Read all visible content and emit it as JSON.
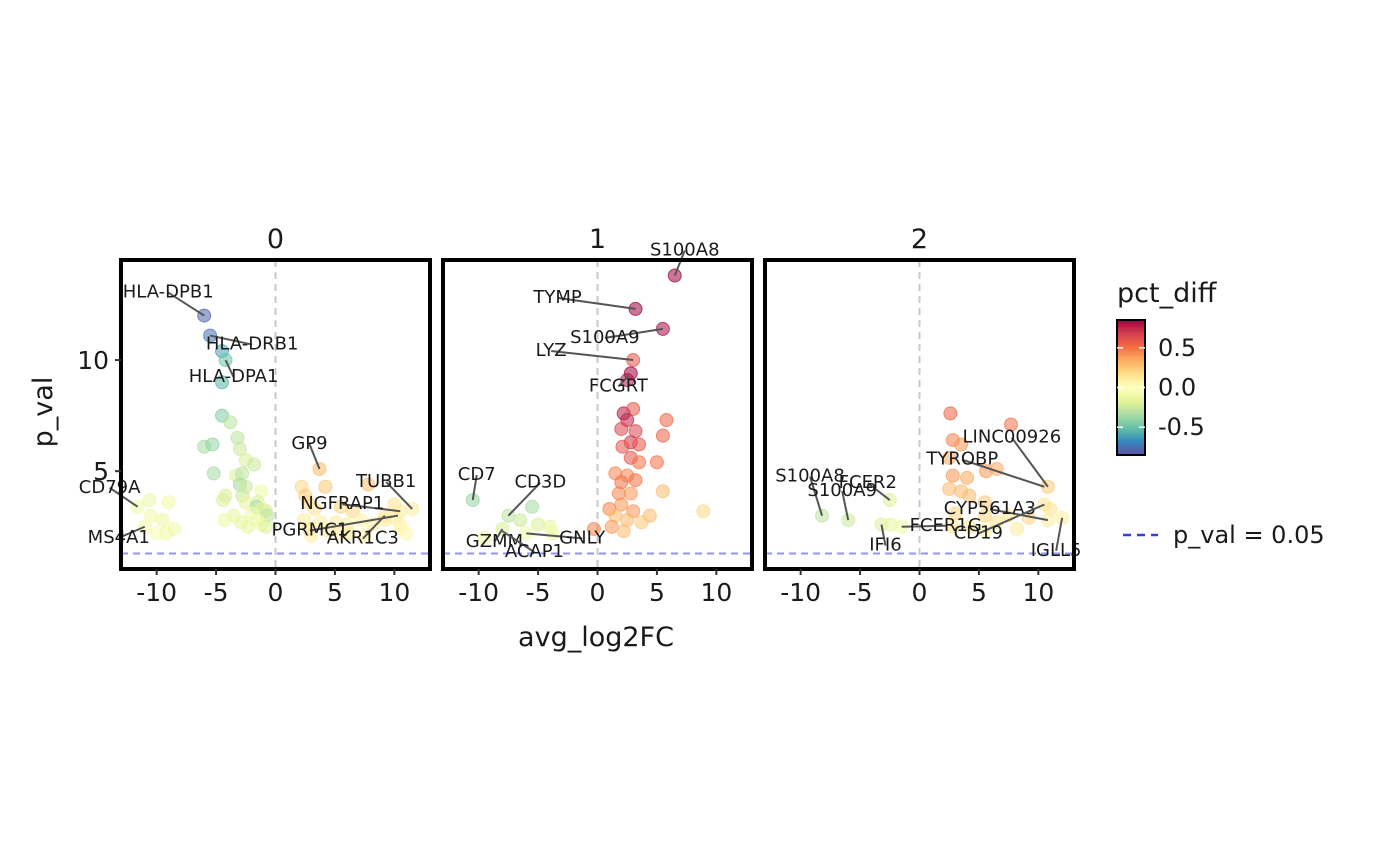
{
  "chart_data": {
    "type": "scatter",
    "ylabel": "p_val",
    "xlabel": "avg_log2FC",
    "xlim": [
      -13,
      13
    ],
    "ylim": [
      0.6,
      14.5
    ],
    "x_ticks": [
      -10,
      -5,
      0,
      5,
      10
    ],
    "x_tick_labels": [
      "-10",
      "-5",
      "0",
      "5",
      "10"
    ],
    "y_ticks": [
      5,
      10
    ],
    "y_tick_labels": [
      "5",
      "10"
    ],
    "threshold_line": {
      "y": 1.3,
      "label": "p_val = 0.05",
      "color": "#6f6ff0"
    },
    "zero_line": {
      "x": 0
    },
    "legend": {
      "title": "pct_diff",
      "position": "right",
      "ticks": [
        {
          "value": 0.5,
          "label": "0.5"
        },
        {
          "value": 0.0,
          "label": "0.0"
        },
        {
          "value": -0.5,
          "label": "-0.5"
        }
      ],
      "range": [
        -0.85,
        0.85
      ],
      "palette": [
        "#5e4fa2",
        "#3288bd",
        "#66c2a5",
        "#abdda4",
        "#e6f598",
        "#ffffbf",
        "#fee08b",
        "#fdae61",
        "#f46d43",
        "#d53e4f",
        "#9e0142"
      ]
    },
    "panels": [
      {
        "title": "0",
        "points": [
          [
            -6,
            12,
            -0.8
          ],
          [
            -5.5,
            11.1,
            -0.75
          ],
          [
            -4.5,
            10.4,
            -0.6
          ],
          [
            -4.2,
            10,
            -0.5
          ],
          [
            -4.5,
            9,
            -0.55
          ],
          [
            -4.5,
            7.5,
            -0.45
          ],
          [
            -3.8,
            7.2,
            -0.3
          ],
          [
            -6,
            6.1,
            -0.35
          ],
          [
            -5.3,
            6.2,
            -0.4
          ],
          [
            -3.2,
            6.5,
            -0.3
          ],
          [
            -3,
            6,
            -0.25
          ],
          [
            -2.5,
            5.5,
            -0.2
          ],
          [
            -1.8,
            5.3,
            -0.25
          ],
          [
            -5.2,
            4.9,
            -0.35
          ],
          [
            -3.3,
            4.8,
            -0.2
          ],
          [
            -2.8,
            4.9,
            -0.3
          ],
          [
            -3,
            4.4,
            -0.35
          ],
          [
            -2.5,
            4.3,
            -0.25
          ],
          [
            -1.2,
            4.1,
            -0.1
          ],
          [
            -4.2,
            3.9,
            -0.2
          ],
          [
            -2.8,
            3.9,
            -0.25
          ],
          [
            -1.5,
            3.6,
            -0.2
          ],
          [
            -4.4,
            3.7,
            -0.2
          ],
          [
            -2.5,
            3.6,
            -0.15
          ],
          [
            -1.6,
            3.4,
            -0.35
          ],
          [
            -1.1,
            3.3,
            -0.15
          ],
          [
            -0.8,
            3.2,
            -0.2
          ],
          [
            -2,
            3.1,
            -0.1
          ],
          [
            -0.7,
            3,
            -0.3
          ],
          [
            -3.5,
            3,
            -0.15
          ],
          [
            -1.6,
            2.8,
            -0.1
          ],
          [
            -2.9,
            2.7,
            -0.15
          ],
          [
            -1.2,
            2.6,
            -0.1
          ],
          [
            -0.8,
            2.5,
            -0.2
          ],
          [
            -4.3,
            2.8,
            -0.1
          ],
          [
            -2.3,
            2.5,
            -0.15
          ],
          [
            -9,
            3.6,
            -0.1
          ],
          [
            -10.6,
            3.7,
            -0.12
          ],
          [
            -11.6,
            3.4,
            -0.1
          ],
          [
            -10.5,
            3,
            -0.1
          ],
          [
            -9.5,
            2.8,
            -0.12
          ],
          [
            -11,
            2.5,
            -0.08
          ],
          [
            -10,
            2.2,
            -0.05
          ],
          [
            -8.5,
            2.4,
            -0.1
          ],
          [
            -9.2,
            2.2,
            -0.1
          ],
          [
            3.7,
            5.1,
            0.3
          ],
          [
            7.8,
            4.4,
            0.28
          ],
          [
            2.2,
            4.3,
            0.2
          ],
          [
            2.5,
            3.9,
            0.25
          ],
          [
            4.2,
            4.3,
            0.25
          ],
          [
            2.7,
            3.6,
            0.2
          ],
          [
            3.3,
            3.3,
            0.15
          ],
          [
            5.5,
            3.4,
            0.2
          ],
          [
            6.5,
            3.2,
            0.2
          ],
          [
            10,
            3.5,
            0.15
          ],
          [
            11.5,
            3.3,
            0.1
          ],
          [
            10.5,
            3.2,
            0.1
          ],
          [
            9.2,
            3,
            0.15
          ],
          [
            10,
            2.9,
            0.1
          ],
          [
            2.4,
            2.8,
            0.1
          ],
          [
            3.8,
            2.7,
            0.1
          ],
          [
            5.1,
            2.7,
            0.1
          ],
          [
            6,
            2.6,
            0.1
          ],
          [
            7.2,
            2.8,
            0.08
          ],
          [
            8.2,
            2.6,
            0.1
          ],
          [
            9.2,
            2.8,
            0.1
          ],
          [
            10.5,
            2.6,
            0.08
          ],
          [
            4.5,
            2.3,
            0.1
          ],
          [
            6.2,
            2.2,
            0.1
          ],
          [
            7.5,
            2.1,
            0.08
          ],
          [
            10.5,
            2.4,
            0.05
          ],
          [
            11,
            2.2,
            0.05
          ],
          [
            3,
            2.1,
            0.1
          ],
          [
            2.8,
            2.4,
            0.15
          ],
          [
            5.5,
            2.2,
            0.1
          ]
        ],
        "labels": [
          {
            "text": "HLA-DPB1",
            "x": -6,
            "y": 12
          },
          {
            "text": "HLA-DRB1",
            "x": -5.5,
            "y": 11.1
          },
          {
            "text": "HLA-DPA1",
            "x": -4.2,
            "y": 10
          },
          {
            "text": "CD79A",
            "x": -11.6,
            "y": 3.4
          },
          {
            "text": "MS4A1",
            "x": -11,
            "y": 2.5
          },
          {
            "text": "GP9",
            "x": 3.7,
            "y": 5.1
          },
          {
            "text": "TUBB1",
            "x": 11.5,
            "y": 3.3
          },
          {
            "text": "NGFRAP1",
            "x": 10.5,
            "y": 3.2
          },
          {
            "text": "PGRMC1",
            "x": 10.3,
            "y": 3
          },
          {
            "text": "AKR1C3",
            "x": 9.2,
            "y": 3
          }
        ]
      },
      {
        "title": "1",
        "points": [
          [
            6.5,
            13.8,
            0.9
          ],
          [
            3.2,
            12.3,
            0.9
          ],
          [
            5.5,
            11.4,
            0.82
          ],
          [
            3,
            10,
            0.6
          ],
          [
            2.8,
            9.4,
            0.85
          ],
          [
            2.5,
            9.1,
            0.8
          ],
          [
            2.2,
            7.6,
            0.78
          ],
          [
            3,
            7.8,
            0.6
          ],
          [
            2.5,
            7.3,
            0.75
          ],
          [
            5.8,
            7.3,
            0.55
          ],
          [
            2,
            6.9,
            0.65
          ],
          [
            3.2,
            6.8,
            0.65
          ],
          [
            5.5,
            6.6,
            0.55
          ],
          [
            2.8,
            6.3,
            0.7
          ],
          [
            2.1,
            6.1,
            0.6
          ],
          [
            3.5,
            6.2,
            0.6
          ],
          [
            2.8,
            5.6,
            0.6
          ],
          [
            3.5,
            5.4,
            0.5
          ],
          [
            5,
            5.4,
            0.5
          ],
          [
            1.5,
            4.9,
            0.45
          ],
          [
            2.5,
            4.8,
            0.45
          ],
          [
            3.2,
            4.6,
            0.5
          ],
          [
            2,
            4.5,
            0.5
          ],
          [
            1.8,
            4,
            0.45
          ],
          [
            2.8,
            4,
            0.4
          ],
          [
            5.5,
            4.1,
            0.3
          ],
          [
            2,
            3.5,
            0.4
          ],
          [
            1,
            3.3,
            0.45
          ],
          [
            3,
            3.2,
            0.4
          ],
          [
            4.4,
            3,
            0.3
          ],
          [
            1.5,
            3,
            0.3
          ],
          [
            2.5,
            2.8,
            0.3
          ],
          [
            8.9,
            3.2,
            0.2
          ],
          [
            3.7,
            2.7,
            0.25
          ],
          [
            1.2,
            2.5,
            0.4
          ],
          [
            -0.3,
            2.4,
            0.45
          ],
          [
            2.2,
            2.3,
            0.3
          ],
          [
            -10.5,
            3.7,
            -0.4
          ],
          [
            -5.5,
            3.4,
            -0.35
          ],
          [
            -7.5,
            3,
            -0.3
          ],
          [
            -6.5,
            2.8,
            -0.25
          ],
          [
            -5,
            2.6,
            -0.2
          ],
          [
            -4,
            2.5,
            -0.15
          ],
          [
            -8,
            2.4,
            -0.2
          ],
          [
            -6,
            2.2,
            -0.1
          ],
          [
            -3.8,
            2.2,
            -0.1
          ],
          [
            -9.5,
            2,
            -0.1
          ]
        ],
        "labels": [
          {
            "text": "S100A8",
            "x": 6.5,
            "y": 13.8
          },
          {
            "text": "TYMP",
            "x": 3.2,
            "y": 12.3
          },
          {
            "text": "S100A9",
            "x": 5.5,
            "y": 11.4
          },
          {
            "text": "LYZ",
            "x": 3,
            "y": 10
          },
          {
            "text": "FCGRT",
            "x": 2.6,
            "y": 9.3
          },
          {
            "text": "CD7",
            "x": -10.5,
            "y": 3.7
          },
          {
            "text": "CD3D",
            "x": -7.5,
            "y": 3
          },
          {
            "text": "GZMM",
            "x": -8,
            "y": 2.4
          },
          {
            "text": "ACAP1",
            "x": -8,
            "y": 2.3
          },
          {
            "text": "GNLY",
            "x": -6,
            "y": 2.2
          }
        ]
      },
      {
        "title": "2",
        "points": [
          [
            2.6,
            7.6,
            0.55
          ],
          [
            7.7,
            7.1,
            0.5
          ],
          [
            2.8,
            6.4,
            0.45
          ],
          [
            3.5,
            6.2,
            0.4
          ],
          [
            2.5,
            5.6,
            0.35
          ],
          [
            5.6,
            5,
            0.4
          ],
          [
            6.5,
            5.1,
            0.35
          ],
          [
            2.8,
            4.8,
            0.4
          ],
          [
            4,
            4.7,
            0.35
          ],
          [
            2.5,
            4.2,
            0.3
          ],
          [
            3.5,
            4.1,
            0.3
          ],
          [
            10.8,
            4.3,
            0.25
          ],
          [
            4.2,
            3.9,
            0.3
          ],
          [
            5.5,
            3.6,
            0.25
          ],
          [
            10.5,
            3.5,
            0.15
          ],
          [
            11,
            3.3,
            0.15
          ],
          [
            3,
            3.1,
            0.2
          ],
          [
            5.5,
            3,
            0.2
          ],
          [
            7.5,
            3,
            0.15
          ],
          [
            9.2,
            2.9,
            0.2
          ],
          [
            12,
            2.9,
            0.1
          ],
          [
            10.8,
            2.8,
            0.1
          ],
          [
            6.5,
            2.7,
            0.15
          ],
          [
            2.8,
            2.5,
            0.15
          ],
          [
            4.2,
            2.5,
            0.1
          ],
          [
            5.5,
            2.3,
            0.1
          ],
          [
            8.2,
            2.4,
            0.1
          ],
          [
            -2.5,
            3.7,
            -0.2
          ],
          [
            -8.2,
            3,
            -0.3
          ],
          [
            -6,
            2.8,
            -0.25
          ],
          [
            -3.2,
            2.6,
            -0.2
          ],
          [
            -2.4,
            2.6,
            -0.15
          ],
          [
            -1.5,
            2.5,
            -0.1
          ]
        ],
        "labels": [
          {
            "text": "LINC00926",
            "x": 10.8,
            "y": 4.3
          },
          {
            "text": "TYROBP",
            "x": 10.5,
            "y": 4.3
          },
          {
            "text": "FCER2",
            "x": -2.5,
            "y": 3.7
          },
          {
            "text": "S100A8",
            "x": -8.2,
            "y": 3
          },
          {
            "text": "S100A9",
            "x": -6,
            "y": 2.8
          },
          {
            "text": "CYP561A3",
            "x": 10.8,
            "y": 2.8
          },
          {
            "text": "FCER1G",
            "x": -1.5,
            "y": 2.5
          },
          {
            "text": "CD19",
            "x": 10.5,
            "y": 3.5
          },
          {
            "text": "IFI6",
            "x": -3.2,
            "y": 2.6
          },
          {
            "text": "IGLL5",
            "x": 12,
            "y": 2.9
          }
        ]
      }
    ]
  }
}
